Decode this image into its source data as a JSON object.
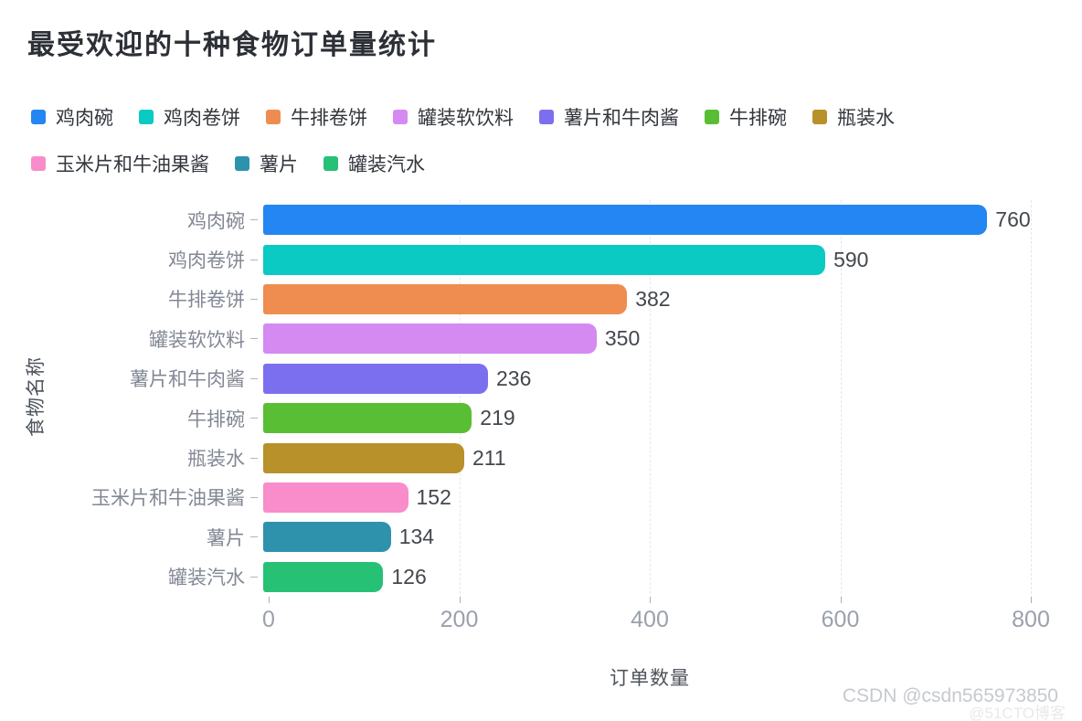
{
  "title": "最受欢迎的十种食物订单量统计",
  "watermark": {
    "main": "CSDN @csdn565973850",
    "secondary": "@51CTO博客"
  },
  "chart_data": {
    "type": "bar",
    "orientation": "horizontal",
    "title": "最受欢迎的十种食物订单量统计",
    "categories": [
      "鸡肉碗",
      "鸡肉卷饼",
      "牛排卷饼",
      "罐装软饮料",
      "薯片和牛肉酱",
      "牛排碗",
      "瓶装水",
      "玉米片和牛油果酱",
      "薯片",
      "罐装汽水"
    ],
    "values": [
      760,
      590,
      382,
      350,
      236,
      219,
      211,
      152,
      134,
      126
    ],
    "colors": [
      "#2386f2",
      "#0bc9c3",
      "#ee8d4f",
      "#d48af0",
      "#7b6ff0",
      "#5abe34",
      "#b8912b",
      "#f98cca",
      "#2e92ad",
      "#27c175"
    ],
    "xlabel": "订单数量",
    "ylabel": "食物名称",
    "xlim": [
      0,
      800
    ],
    "xticks": [
      0,
      200,
      400,
      600,
      800
    ],
    "grid": "vertical-dashed",
    "legend_position": "top",
    "value_labels": "end-of-bar"
  }
}
